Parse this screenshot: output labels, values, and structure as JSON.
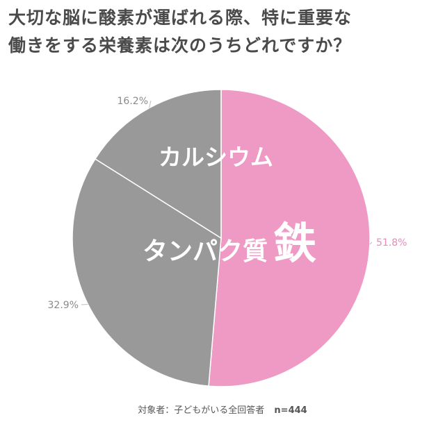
{
  "title_lines": [
    "大切な脳に酸素が運ばれる際、特に重要な",
    "働きをする栄養素は次のうちどれですか？"
  ],
  "footnote": {
    "respondents": "対象者：子どもがいる全回答者",
    "n": "n=444"
  },
  "colors": {
    "highlight": "#EF9AC5",
    "other": "#999999",
    "title": "#4a4a4a"
  },
  "chart_data": {
    "type": "pie",
    "start_angle_deg": 0,
    "direction": "clockwise",
    "slices": [
      {
        "label": "鉄",
        "value": 51.8,
        "percent_label": "51.8%",
        "color": "#EF9AC5"
      },
      {
        "label": "タンパク質",
        "value": 32.9,
        "percent_label": "32.9%",
        "color": "#999999"
      },
      {
        "label": "カルシウム",
        "value": 16.2,
        "percent_label": "16.2%",
        "color": "#999999"
      }
    ]
  }
}
